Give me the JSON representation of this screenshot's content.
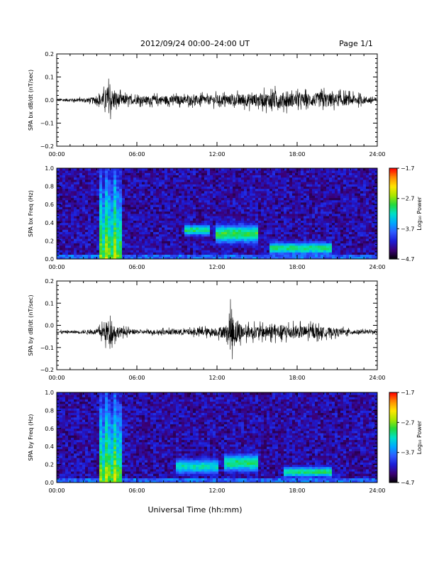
{
  "header": {
    "title": "2012/09/24  00:00–24:00 UT",
    "page": "Page 1/1"
  },
  "footer": {
    "xlabel": "Universal Time (hh:mm)"
  },
  "colors": {
    "colormap": [
      "#000000",
      "#3b0075",
      "#1c1cd6",
      "#2d5cff",
      "#00a8ff",
      "#00e0c8",
      "#22d93c",
      "#a8e600",
      "#ffe600",
      "#ff8c00",
      "#ff0000"
    ],
    "trace": "#000000",
    "background_noise": "#1a2fd0"
  },
  "chart_data": [
    {
      "type": "line",
      "ylabel": "SPA bx dB/dt (nT/sec)",
      "xlim": [
        0,
        24
      ],
      "ylim": [
        -0.2,
        0.2
      ],
      "xticks": [
        "00:00",
        "06:00",
        "12:00",
        "18:00",
        "24:00"
      ],
      "yticks": [
        "−0.2",
        "−0.1",
        "0.0",
        "0.1",
        "0.2"
      ],
      "series": [
        {
          "baseline": 0.0,
          "x": [
            0,
            2,
            3.0,
            3.5,
            3.8,
            4.0,
            4.2,
            4.5,
            5.0,
            6.0,
            8.0,
            10.0,
            11.0,
            12.0,
            13.0,
            14.0,
            15.0,
            16.0,
            16.5,
            17.0,
            18.0,
            19.0,
            20.0,
            21.0,
            22.0,
            24.0
          ],
          "amplitude": [
            0.01,
            0.015,
            0.025,
            0.06,
            0.11,
            0.1,
            0.08,
            0.06,
            0.04,
            0.03,
            0.035,
            0.035,
            0.035,
            0.04,
            0.04,
            0.05,
            0.05,
            0.06,
            0.07,
            0.06,
            0.05,
            0.05,
            0.06,
            0.05,
            0.04,
            0.02
          ]
        }
      ]
    },
    {
      "type": "heatmap",
      "ylabel": "SPA bx Freq (Hz)",
      "colorbar_label": "Log₁₀ Power",
      "colorbar_range": [
        -4.7,
        -1.7
      ],
      "colorbar_ticks": [
        "−1.7",
        "−2.7",
        "−3.7",
        "−4.7"
      ],
      "xlim": [
        0,
        24
      ],
      "ylim": [
        0,
        1.0
      ],
      "xticks": [
        "00:00",
        "06:00",
        "12:00",
        "18:00",
        "24:00"
      ],
      "yticks": [
        "0.0",
        "0.2",
        "0.4",
        "0.6",
        "0.8",
        "1.0"
      ],
      "features": [
        {
          "kind": "burst",
          "x": [
            3.1,
            4.8
          ],
          "ylim": [
            0,
            1.0
          ],
          "level": -2.4
        },
        {
          "kind": "hump",
          "x": [
            9.5,
            11.5
          ],
          "center": 0.32,
          "width": 0.06,
          "level": -3.0
        },
        {
          "kind": "hump",
          "x": [
            12.0,
            15.0
          ],
          "center": 0.28,
          "width": 0.1,
          "level": -2.9
        },
        {
          "kind": "hump",
          "x": [
            16.0,
            20.5
          ],
          "center": 0.12,
          "width": 0.07,
          "level": -3.0
        }
      ]
    },
    {
      "type": "line",
      "ylabel": "SPA by dB/dt (nT/sec)",
      "xlim": [
        0,
        24
      ],
      "ylim": [
        -0.2,
        0.2
      ],
      "xticks": [
        "00:00",
        "06:00",
        "12:00",
        "18:00",
        "24:00"
      ],
      "yticks": [
        "−0.2",
        "−0.1",
        "0.0",
        "0.1",
        "0.2"
      ],
      "series": [
        {
          "baseline": -0.03,
          "x": [
            0,
            2,
            3.0,
            3.5,
            3.8,
            4.0,
            4.2,
            4.5,
            5.0,
            6.0,
            8.0,
            10.0,
            11.0,
            12.0,
            12.8,
            13.0,
            14.0,
            15.0,
            16.0,
            17.0,
            18.0,
            19.0,
            20.0,
            21.0,
            22.0,
            24.0
          ],
          "amplitude": [
            0.01,
            0.012,
            0.02,
            0.06,
            0.1,
            0.09,
            0.07,
            0.05,
            0.03,
            0.015,
            0.02,
            0.025,
            0.03,
            0.035,
            0.06,
            0.15,
            0.05,
            0.05,
            0.05,
            0.06,
            0.05,
            0.05,
            0.04,
            0.03,
            0.02,
            0.01
          ]
        }
      ]
    },
    {
      "type": "heatmap",
      "ylabel": "SPA by Freq (Hz)",
      "colorbar_label": "Log₁₀ Power",
      "colorbar_range": [
        -4.7,
        -1.7
      ],
      "colorbar_ticks": [
        "−1.7",
        "−2.7",
        "−3.7",
        "−4.7"
      ],
      "xlim": [
        0,
        24
      ],
      "ylim": [
        0,
        1.0
      ],
      "xticks": [
        "00:00",
        "06:00",
        "12:00",
        "18:00",
        "24:00"
      ],
      "yticks": [
        "0.0",
        "0.2",
        "0.4",
        "0.6",
        "0.8",
        "1.0"
      ],
      "features": [
        {
          "kind": "burst",
          "x": [
            3.1,
            4.8
          ],
          "ylim": [
            0,
            1.0
          ],
          "level": -2.4
        },
        {
          "kind": "hump",
          "x": [
            9.0,
            12.0
          ],
          "center": 0.18,
          "width": 0.1,
          "level": -3.2
        },
        {
          "kind": "hump",
          "x": [
            12.5,
            15.0
          ],
          "center": 0.22,
          "width": 0.1,
          "level": -3.0
        },
        {
          "kind": "hump",
          "x": [
            17.0,
            20.5
          ],
          "center": 0.12,
          "width": 0.06,
          "level": -3.0
        }
      ]
    }
  ]
}
